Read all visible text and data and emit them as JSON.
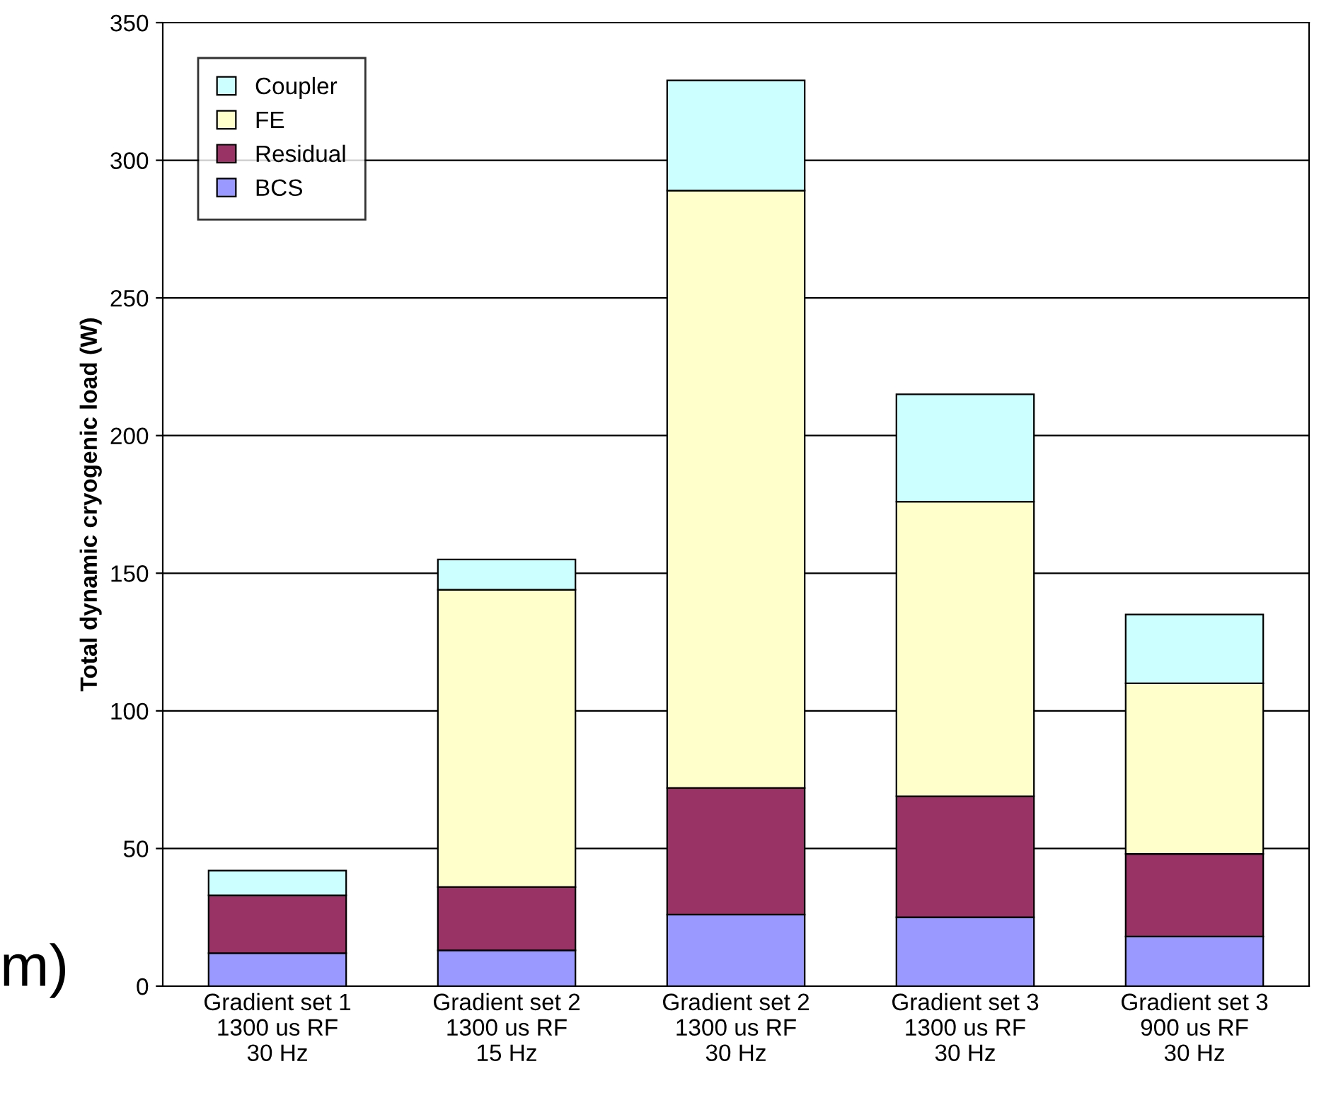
{
  "chart_data": {
    "type": "bar",
    "stacked": true,
    "ylabel": "Total dynamic cryogenic load (W)",
    "categories": [
      "Gradient set 1\n1300 us RF\n30 Hz",
      "Gradient set 2\n1300 us RF\n15 Hz",
      "Gradient set 2\n1300 us RF\n30 Hz",
      "Gradient set 3\n1300 us RF\n30 Hz",
      "Gradient set 3\n900 us RF\n30 Hz"
    ],
    "series": [
      {
        "name": "BCS",
        "color": "#9999ff",
        "values": [
          12,
          13,
          26,
          25,
          18
        ]
      },
      {
        "name": "Residual",
        "color": "#993366",
        "values": [
          21,
          23,
          46,
          44,
          30
        ]
      },
      {
        "name": "FE",
        "color": "#ffffcc",
        "values": [
          0,
          108,
          217,
          107,
          62
        ]
      },
      {
        "name": "Coupler",
        "color": "#ccffff",
        "values": [
          9,
          11,
          40,
          39,
          25
        ]
      }
    ],
    "ylim": [
      0,
      350
    ],
    "yticks": [
      0,
      50,
      100,
      150,
      200,
      250,
      300,
      350
    ],
    "grid": "y",
    "legend": "top left",
    "annotations": [
      "m)"
    ]
  }
}
